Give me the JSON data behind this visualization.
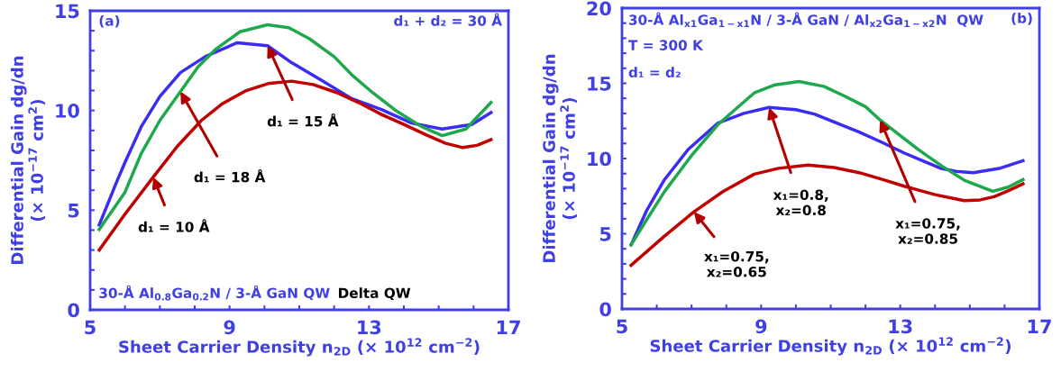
{
  "chart_data": [
    {
      "type": "line",
      "xlabel": "Sheet Carrier Density n$_{2D}$ (× 10$^{12}$ cm$^{−2}$)",
      "ylabel": "Differential Gain dg/dn\n(× 10$^{−17}$ cm$^{2}$)",
      "xlim": [
        5,
        17
      ],
      "ylim": [
        0,
        15
      ],
      "xticks": [
        5,
        {
          "value": 6,
          "label": null
        },
        {
          "value": 7,
          "label": null
        },
        {
          "value": 8,
          "label": null
        },
        9,
        {
          "value": 10,
          "label": null
        },
        {
          "value": 11,
          "label": null
        },
        {
          "value": 12,
          "label": null
        },
        13,
        {
          "value": 14,
          "label": null
        },
        {
          "value": 15,
          "label": null
        },
        {
          "value": 16,
          "label": null
        },
        17
      ],
      "yticks": [
        0,
        {
          "value": 1,
          "label": null
        },
        {
          "value": 2,
          "label": null
        },
        {
          "value": 3,
          "label": null
        },
        {
          "value": 4,
          "label": null
        },
        5,
        {
          "value": 6,
          "label": null
        },
        {
          "value": 7,
          "label": null
        },
        {
          "value": 8,
          "label": null
        },
        {
          "value": 9,
          "label": null
        },
        10,
        {
          "value": 11,
          "label": null
        },
        {
          "value": 12,
          "label": null
        },
        {
          "value": 13,
          "label": null
        },
        {
          "value": 14,
          "label": null
        },
        15
      ],
      "grid": false,
      "marker": "none",
      "line_style": "solid",
      "series": [
        {
          "color": "#3a2cf2",
          "x": [
            5.26,
            5.78,
            6.0,
            6.47,
            7.0,
            7.59,
            8.3,
            9.22,
            10.09,
            10.78,
            11.6,
            12.5,
            13.36,
            14.22,
            15.1,
            15.95,
            16.5
          ],
          "values": [
            4.26,
            6.5,
            7.4,
            9.2,
            10.7,
            11.9,
            12.7,
            13.4,
            13.25,
            12.4,
            11.55,
            10.6,
            10.05,
            9.37,
            9.07,
            9.3,
            9.9
          ]
        },
        {
          "color": "#1ea84c",
          "x": [
            5.26,
            6.0,
            6.47,
            7.0,
            7.59,
            8.1,
            8.62,
            9.3,
            10.09,
            10.7,
            11.29,
            12.0,
            12.5,
            13.1,
            13.79,
            14.5,
            15.1,
            15.78,
            16.5
          ],
          "values": [
            4.03,
            5.9,
            7.86,
            9.5,
            10.95,
            12.2,
            13.1,
            13.95,
            14.3,
            14.15,
            13.6,
            12.7,
            11.8,
            10.9,
            9.97,
            9.2,
            8.74,
            9.07,
            10.4
          ]
        },
        {
          "color": "#c00000",
          "x": [
            5.26,
            6.0,
            6.81,
            7.5,
            8.19,
            8.8,
            9.48,
            10.1,
            10.78,
            11.4,
            12.07,
            12.7,
            13.36,
            14.0,
            14.65,
            15.2,
            15.69,
            16.1,
            16.5
          ],
          "values": [
            3.0,
            4.8,
            6.66,
            8.2,
            9.5,
            10.35,
            11.0,
            11.35,
            11.47,
            11.3,
            10.9,
            10.4,
            9.8,
            9.3,
            8.77,
            8.35,
            8.14,
            8.25,
            8.54
          ]
        }
      ],
      "annotations": [
        "(a)",
        "d₁ + d₂ = 30 Å",
        "30-Å Al$_{0.8}$Ga$_{0.2}$N / 3-Å GaN QW",
        "Delta QW",
        {
          "text": "d₁ = 15 Å",
          "x": 10.09,
          "y": 13.25
        },
        {
          "text": "d₁ = 18 Å",
          "x": 7.59,
          "y": 10.95
        },
        {
          "text": "d₁ = 10 Å",
          "x": 6.81,
          "y": 6.66
        }
      ]
    },
    {
      "type": "line",
      "xlabel": "Sheet Carrier Density n$_{2D}$ (× 10$^{12}$ cm$^{−2}$)",
      "ylabel": "Differential Gain dg/dn\n(× 10$^{−17}$ cm$^{2}$)",
      "xlim": [
        5,
        17
      ],
      "ylim": [
        0,
        20
      ],
      "xticks": [
        5,
        {
          "value": 6,
          "label": null
        },
        {
          "value": 7,
          "label": null
        },
        {
          "value": 8,
          "label": null
        },
        9,
        {
          "value": 10,
          "label": null
        },
        {
          "value": 11,
          "label": null
        },
        {
          "value": 12,
          "label": null
        },
        13,
        {
          "value": 14,
          "label": null
        },
        {
          "value": 15,
          "label": null
        },
        {
          "value": 16,
          "label": null
        },
        17
      ],
      "yticks": [
        0,
        {
          "value": 1,
          "label": null
        },
        {
          "value": 2,
          "label": null
        },
        {
          "value": 3,
          "label": null
        },
        {
          "value": 4,
          "label": null
        },
        5,
        {
          "value": 6,
          "label": null
        },
        {
          "value": 7,
          "label": null
        },
        {
          "value": 8,
          "label": null
        },
        {
          "value": 9,
          "label": null
        },
        10,
        {
          "value": 11,
          "label": null
        },
        {
          "value": 12,
          "label": null
        },
        {
          "value": 13,
          "label": null
        },
        {
          "value": 14,
          "label": null
        },
        15,
        {
          "value": 16,
          "label": null
        },
        {
          "value": 17,
          "label": null
        },
        {
          "value": 18,
          "label": null
        },
        {
          "value": 19,
          "label": null
        },
        20
      ],
      "grid": false,
      "marker": "none",
      "line_style": "solid",
      "series": [
        {
          "color": "#3a2cf2",
          "x": [
            5.26,
            5.7,
            6.21,
            6.9,
            7.76,
            8.5,
            9.23,
            10.0,
            10.53,
            11.82,
            12.5,
            13.12,
            14.15,
            14.6,
            15.1,
            15.88,
            16.53
          ],
          "values": [
            4.26,
            6.5,
            8.56,
            10.6,
            12.36,
            13.0,
            13.4,
            13.25,
            12.96,
            11.76,
            11.05,
            10.36,
            9.36,
            9.15,
            9.06,
            9.36,
            9.86
          ]
        },
        {
          "color": "#1ea84c",
          "x": [
            5.26,
            5.7,
            6.21,
            7.0,
            7.76,
            8.8,
            9.4,
            10.09,
            10.8,
            11.39,
            12.0,
            12.42,
            13.54,
            14.2,
            14.84,
            15.66,
            16.1,
            16.53
          ],
          "values": [
            4.26,
            5.9,
            7.76,
            10.2,
            12.26,
            14.36,
            14.9,
            15.12,
            14.8,
            14.16,
            13.45,
            12.56,
            10.56,
            9.5,
            8.56,
            7.82,
            8.1,
            8.6
          ]
        },
        {
          "color": "#c00000",
          "x": [
            5.26,
            6.2,
            7.07,
            7.9,
            8.8,
            9.5,
            10.35,
            11.1,
            11.82,
            12.5,
            13.12,
            14.0,
            14.84,
            15.3,
            15.7,
            16.1,
            16.53
          ],
          "values": [
            2.9,
            4.8,
            6.46,
            7.8,
            8.96,
            9.35,
            9.56,
            9.4,
            9.06,
            8.6,
            8.16,
            7.6,
            7.2,
            7.25,
            7.46,
            7.85,
            8.32
          ]
        }
      ],
      "annotations": [
        "30-Å Al$_{x1}$Ga$_{1−x1}$N / 3-Å GaN / Al$_{x2}$Ga$_{1−x2}$N  QW",
        "T = 300 K",
        "d₁ = d₂",
        "(b)",
        {
          "text": "x₁=0.8,\nx₂=0.8",
          "x": 9.23,
          "y": 13.4
        },
        {
          "text": "x₁=0.75,\nx₂=0.85",
          "x": 12.42,
          "y": 12.56
        },
        {
          "text": "x₁=0.75,\nx₂=0.65",
          "x": 7.07,
          "y": 6.46
        }
      ]
    }
  ]
}
